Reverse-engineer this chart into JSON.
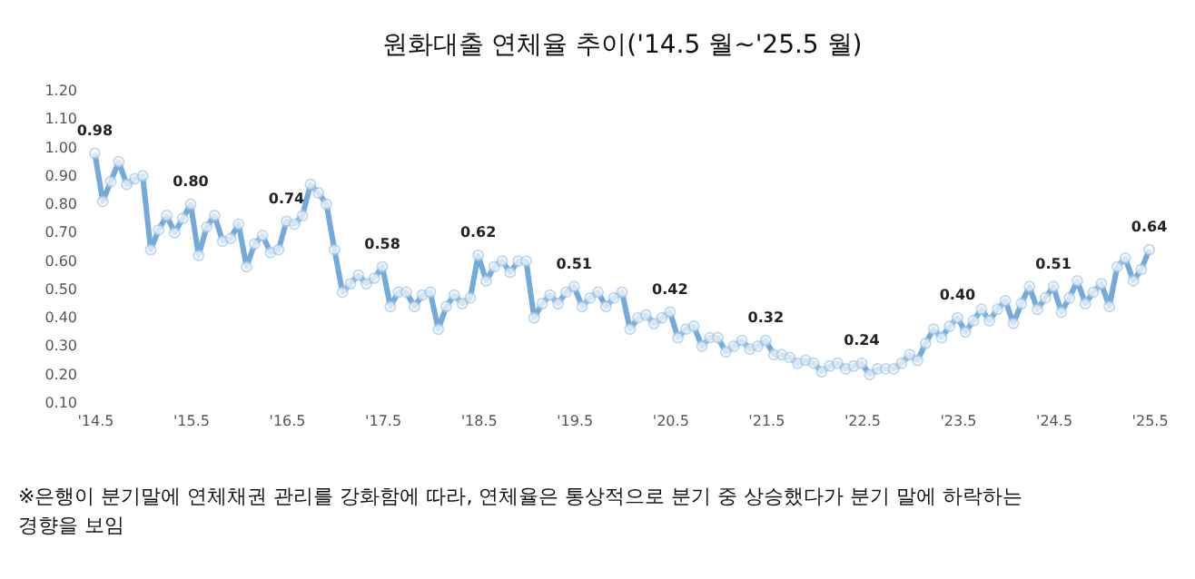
{
  "chart_data": {
    "type": "line",
    "title": "원화대출 연체율 추이('14.5 월~'25.5 월)",
    "categories": [
      "'14.5",
      null,
      null,
      null,
      null,
      null,
      null,
      null,
      null,
      null,
      null,
      null,
      "'15.5",
      null,
      null,
      null,
      null,
      null,
      null,
      null,
      null,
      null,
      null,
      null,
      "'16.5",
      null,
      null,
      null,
      null,
      null,
      null,
      null,
      null,
      null,
      null,
      null,
      "'17.5",
      null,
      null,
      null,
      null,
      null,
      null,
      null,
      null,
      null,
      null,
      null,
      "'18.5",
      null,
      null,
      null,
      null,
      null,
      null,
      null,
      null,
      null,
      null,
      null,
      "'19.5",
      null,
      null,
      null,
      null,
      null,
      null,
      null,
      null,
      null,
      null,
      null,
      "'20.5",
      null,
      null,
      null,
      null,
      null,
      null,
      null,
      null,
      null,
      null,
      null,
      "'21.5",
      null,
      null,
      null,
      null,
      null,
      null,
      null,
      null,
      null,
      null,
      null,
      "'22.5",
      null,
      null,
      null,
      null,
      null,
      null,
      null,
      null,
      null,
      null,
      null,
      "'23.5",
      null,
      null,
      null,
      null,
      null,
      null,
      null,
      null,
      null,
      null,
      null,
      "'24.5",
      null,
      null,
      null,
      null,
      null,
      null,
      null,
      null,
      null,
      null,
      null,
      "'25.5"
    ],
    "series": [
      {
        "color": "#5b9bd5",
        "values": [
          0.98,
          0.81,
          0.88,
          0.95,
          0.87,
          0.89,
          0.9,
          0.64,
          0.71,
          0.76,
          0.7,
          0.75,
          0.8,
          0.62,
          0.72,
          0.76,
          0.67,
          0.68,
          0.73,
          0.58,
          0.66,
          0.69,
          0.63,
          0.64,
          0.74,
          0.73,
          0.76,
          0.87,
          0.84,
          0.8,
          0.64,
          0.49,
          0.52,
          0.55,
          0.52,
          0.54,
          0.58,
          0.44,
          0.49,
          0.49,
          0.44,
          0.48,
          0.49,
          0.36,
          0.44,
          0.48,
          0.45,
          0.47,
          0.62,
          0.53,
          0.58,
          0.6,
          0.56,
          0.6,
          0.6,
          0.4,
          0.45,
          0.48,
          0.45,
          0.49,
          0.51,
          0.44,
          0.47,
          0.49,
          0.44,
          0.47,
          0.49,
          0.36,
          0.4,
          0.41,
          0.38,
          0.4,
          0.42,
          0.33,
          0.36,
          0.37,
          0.3,
          0.33,
          0.33,
          0.28,
          0.3,
          0.32,
          0.29,
          0.3,
          0.32,
          0.27,
          0.27,
          0.26,
          0.24,
          0.25,
          0.24,
          0.21,
          0.23,
          0.24,
          0.22,
          0.23,
          0.24,
          0.2,
          0.22,
          0.22,
          0.22,
          0.24,
          0.27,
          0.25,
          0.31,
          0.36,
          0.33,
          0.37,
          0.4,
          0.35,
          0.39,
          0.43,
          0.39,
          0.43,
          0.46,
          0.38,
          0.45,
          0.51,
          0.43,
          0.47,
          0.51,
          0.42,
          0.47,
          0.53,
          0.45,
          0.49,
          0.52,
          0.44,
          0.58,
          0.61,
          0.53,
          0.57,
          0.64
        ],
        "value_labels": [
          "0.98",
          null,
          null,
          null,
          null,
          null,
          null,
          null,
          null,
          null,
          null,
          null,
          "0.80",
          null,
          null,
          null,
          null,
          null,
          null,
          null,
          null,
          null,
          null,
          null,
          "0.74",
          null,
          null,
          null,
          null,
          null,
          null,
          null,
          null,
          null,
          null,
          null,
          "0.58",
          null,
          null,
          null,
          null,
          null,
          null,
          null,
          null,
          null,
          null,
          null,
          "0.62",
          null,
          null,
          null,
          null,
          null,
          null,
          null,
          null,
          null,
          null,
          null,
          "0.51",
          null,
          null,
          null,
          null,
          null,
          null,
          null,
          null,
          null,
          null,
          null,
          "0.42",
          null,
          null,
          null,
          null,
          null,
          null,
          null,
          null,
          null,
          null,
          null,
          "0.32",
          null,
          null,
          null,
          null,
          null,
          null,
          null,
          null,
          null,
          null,
          null,
          "0.24",
          null,
          null,
          null,
          null,
          null,
          null,
          null,
          null,
          null,
          null,
          null,
          "0.40",
          null,
          null,
          null,
          null,
          null,
          null,
          null,
          null,
          null,
          null,
          null,
          "0.51",
          null,
          null,
          null,
          null,
          null,
          null,
          null,
          null,
          null,
          null,
          null,
          "0.64"
        ]
      }
    ],
    "ylim": [
      0.1,
      1.2
    ],
    "yticks": [
      {
        "value": 0.1,
        "label": "0.10"
      },
      {
        "value": 0.2,
        "label": "0.20"
      },
      {
        "value": 0.3,
        "label": "0.30"
      },
      {
        "value": 0.4,
        "label": "0.40"
      },
      {
        "value": 0.5,
        "label": "0.50"
      },
      {
        "value": 0.6,
        "label": "0.60"
      },
      {
        "value": 0.7,
        "label": "0.70"
      },
      {
        "value": 0.8,
        "label": "0.80"
      },
      {
        "value": 0.9,
        "label": "0.90"
      },
      {
        "value": 1.0,
        "label": "1.00"
      },
      {
        "value": 1.1,
        "label": "1.10"
      },
      {
        "value": 1.2,
        "label": "1.20"
      }
    ],
    "marker": "circle",
    "grid": false,
    "annotations": [
      "※은행이 분기말에 연체채권 관리를 강화함에 따라, 연체율은 통상적으로 분기 중 상승했다가 분기 말에 하락하는 경향을 보임"
    ]
  }
}
